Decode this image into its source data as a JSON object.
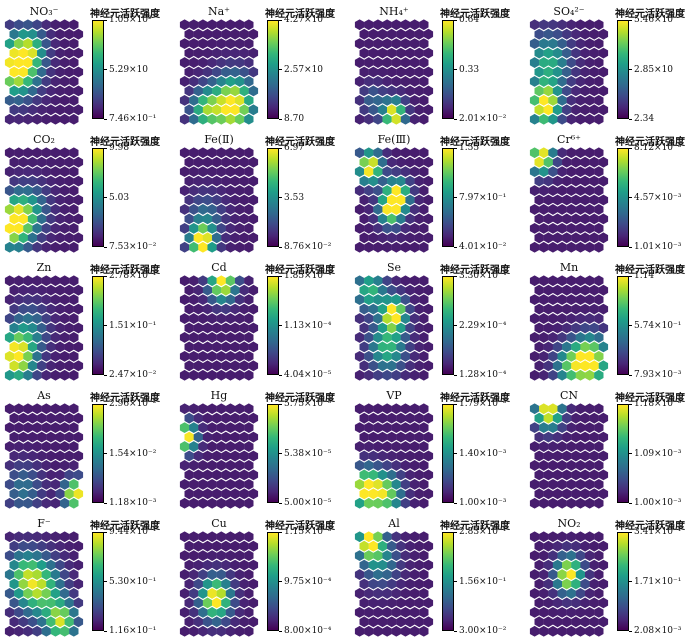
{
  "colorbar_title": "神经元活跃强度",
  "colormap": [
    "#440154",
    "#482878",
    "#3e4989",
    "#31688e",
    "#26828e",
    "#1f9e89",
    "#35b779",
    "#6ece58",
    "#b5de2b",
    "#fde725"
  ],
  "hex_background": "#3f2f7a",
  "chart_data": [
    {
      "type": "heatmap",
      "name": "NO₃⁻",
      "ticks": [
        "1.05×10²",
        "5.29×10",
        "7.46×10⁻¹"
      ],
      "hotspots": [
        {
          "gx": 0.1,
          "gy": 0.45,
          "r": 0.35,
          "w": 1.0
        },
        {
          "gx": 0.3,
          "gy": 0.25,
          "r": 0.25,
          "w": 0.5
        }
      ]
    },
    {
      "type": "heatmap",
      "name": "Na⁺",
      "ticks": [
        "4.27×10",
        "2.57×10",
        "8.70"
      ],
      "hotspots": [
        {
          "gx": 0.7,
          "gy": 0.85,
          "r": 0.35,
          "w": 1.0
        },
        {
          "gx": 0.3,
          "gy": 0.9,
          "r": 0.25,
          "w": 0.6
        }
      ]
    },
    {
      "type": "heatmap",
      "name": "NH₄⁺",
      "ticks": [
        "0.64",
        "0.33",
        "2.01×10⁻²"
      ],
      "hotspots": [
        {
          "gx": 0.5,
          "gy": 0.95,
          "r": 0.18,
          "w": 1.0
        },
        {
          "gx": 0.2,
          "gy": 0.8,
          "r": 0.2,
          "w": 0.25
        }
      ]
    },
    {
      "type": "heatmap",
      "name": "SO₄²⁻",
      "ticks": [
        "5.46×10",
        "2.85×10",
        "2.34"
      ],
      "hotspots": [
        {
          "gx": 0.15,
          "gy": 0.85,
          "r": 0.25,
          "w": 1.0
        },
        {
          "gx": 0.2,
          "gy": 0.4,
          "r": 0.35,
          "w": 0.55
        }
      ]
    },
    {
      "type": "heatmap",
      "name": "CO₂",
      "ticks": [
        "9.98",
        "5.03",
        "7.53×10⁻²"
      ],
      "hotspots": [
        {
          "gx": 0.05,
          "gy": 0.75,
          "r": 0.3,
          "w": 1.0
        },
        {
          "gx": 0.3,
          "gy": 0.6,
          "r": 0.3,
          "w": 0.4
        }
      ]
    },
    {
      "type": "heatmap",
      "name": "Fe(Ⅱ)",
      "ticks": [
        "6.97",
        "3.53",
        "8.76×10⁻²"
      ],
      "hotspots": [
        {
          "gx": 0.25,
          "gy": 0.95,
          "r": 0.2,
          "w": 1.0
        },
        {
          "gx": 0.3,
          "gy": 0.7,
          "r": 0.3,
          "w": 0.3
        }
      ]
    },
    {
      "type": "heatmap",
      "name": "Fe(Ⅲ)",
      "ticks": [
        "1.55",
        "7.97×10⁻¹",
        "4.01×10⁻²"
      ],
      "hotspots": [
        {
          "gx": 0.15,
          "gy": 0.15,
          "r": 0.2,
          "w": 1.0
        },
        {
          "gx": 0.55,
          "gy": 0.45,
          "r": 0.2,
          "w": 0.9
        },
        {
          "gx": 0.45,
          "gy": 0.6,
          "r": 0.2,
          "w": 0.8
        }
      ]
    },
    {
      "type": "heatmap",
      "name": "Cr⁶⁺",
      "ticks": [
        "8.12×10⁻³",
        "4.57×10⁻³",
        "1.01×10⁻³"
      ],
      "hotspots": [
        {
          "gx": 0.1,
          "gy": 0.05,
          "r": 0.2,
          "w": 1.0
        }
      ]
    },
    {
      "type": "heatmap",
      "name": "Zn",
      "ticks": [
        "2.78×10⁻¹",
        "1.51×10⁻¹",
        "2.47×10⁻²"
      ],
      "hotspots": [
        {
          "gx": 0.1,
          "gy": 0.8,
          "r": 0.3,
          "w": 1.0
        },
        {
          "gx": 0.3,
          "gy": 0.5,
          "r": 0.3,
          "w": 0.3
        }
      ]
    },
    {
      "type": "heatmap",
      "name": "Cd",
      "ticks": [
        "1.85×10⁻⁴",
        "1.13×10⁻⁴",
        "4.04×10⁻⁵"
      ],
      "hotspots": [
        {
          "gx": 0.55,
          "gy": 0.02,
          "r": 0.22,
          "w": 1.0
        }
      ]
    },
    {
      "type": "heatmap",
      "name": "Se",
      "ticks": [
        "3.30×10⁻⁴",
        "2.29×10⁻⁴",
        "1.28×10⁻⁴"
      ],
      "hotspots": [
        {
          "gx": 0.5,
          "gy": 0.35,
          "r": 0.2,
          "w": 1.0
        },
        {
          "gx": 0.4,
          "gy": 0.7,
          "r": 0.3,
          "w": 0.6
        },
        {
          "gx": 0.15,
          "gy": 0.1,
          "r": 0.25,
          "w": 0.6
        }
      ]
    },
    {
      "type": "heatmap",
      "name": "Mn",
      "ticks": [
        "1.14",
        "5.74×10⁻¹",
        "7.93×10⁻³"
      ],
      "hotspots": [
        {
          "gx": 0.8,
          "gy": 0.85,
          "r": 0.3,
          "w": 1.0
        },
        {
          "gx": 0.5,
          "gy": 0.9,
          "r": 0.25,
          "w": 0.5
        }
      ]
    },
    {
      "type": "heatmap",
      "name": "As",
      "ticks": [
        "2.96×10⁻²",
        "1.54×10⁻²",
        "1.18×10⁻³"
      ],
      "hotspots": [
        {
          "gx": 0.95,
          "gy": 0.9,
          "r": 0.18,
          "w": 1.0
        },
        {
          "gx": 0.2,
          "gy": 0.85,
          "r": 0.3,
          "w": 0.3
        }
      ]
    },
    {
      "type": "heatmap",
      "name": "Hg",
      "ticks": [
        "5.75×10⁻⁵",
        "5.38×10⁻⁵",
        "5.00×10⁻⁵"
      ],
      "hotspots": [
        {
          "gx": 0.02,
          "gy": 0.3,
          "r": 0.18,
          "w": 1.0
        }
      ]
    },
    {
      "type": "heatmap",
      "name": "VP",
      "ticks": [
        "1.79×10⁻³",
        "1.40×10⁻³",
        "1.00×10⁻³"
      ],
      "hotspots": [
        {
          "gx": 0.1,
          "gy": 0.85,
          "r": 0.25,
          "w": 1.0
        },
        {
          "gx": 0.4,
          "gy": 0.9,
          "r": 0.25,
          "w": 0.7
        }
      ]
    },
    {
      "type": "heatmap",
      "name": "CN",
      "ticks": [
        "1.18×10⁻³",
        "1.09×10⁻³",
        "1.00×10⁻³"
      ],
      "hotspots": [
        {
          "gx": 0.2,
          "gy": 0.02,
          "r": 0.22,
          "w": 1.0
        }
      ]
    },
    {
      "type": "heatmap",
      "name": "F⁻",
      "ticks": [
        "9.44×10⁻¹",
        "5.30×10⁻¹",
        "1.16×10⁻¹"
      ],
      "hotspots": [
        {
          "gx": 0.45,
          "gy": 0.55,
          "r": 0.35,
          "w": 0.7
        },
        {
          "gx": 0.75,
          "gy": 0.9,
          "r": 0.25,
          "w": 0.8
        },
        {
          "gx": 0.2,
          "gy": 0.4,
          "r": 0.3,
          "w": 0.5
        }
      ]
    },
    {
      "type": "heatmap",
      "name": "Cu",
      "ticks": [
        "1.15×10⁻³",
        "9.75×10⁻⁴",
        "8.00×10⁻⁴"
      ],
      "hotspots": [
        {
          "gx": 0.45,
          "gy": 0.65,
          "r": 0.25,
          "w": 1.0
        }
      ]
    },
    {
      "type": "heatmap",
      "name": "Al",
      "ticks": [
        "2.83×10⁻¹",
        "1.56×10⁻¹",
        "3.00×10⁻²"
      ],
      "hotspots": [
        {
          "gx": 0.15,
          "gy": 0.05,
          "r": 0.2,
          "w": 1.0
        },
        {
          "gx": 0.3,
          "gy": 0.25,
          "r": 0.3,
          "w": 0.4
        }
      ]
    },
    {
      "type": "heatmap",
      "name": "NO₂",
      "ticks": [
        "3.41×10⁻¹",
        "1.71×10⁻¹",
        "2.08×10⁻³"
      ],
      "hotspots": [
        {
          "gx": 0.5,
          "gy": 0.4,
          "r": 0.22,
          "w": 1.0
        }
      ]
    }
  ]
}
